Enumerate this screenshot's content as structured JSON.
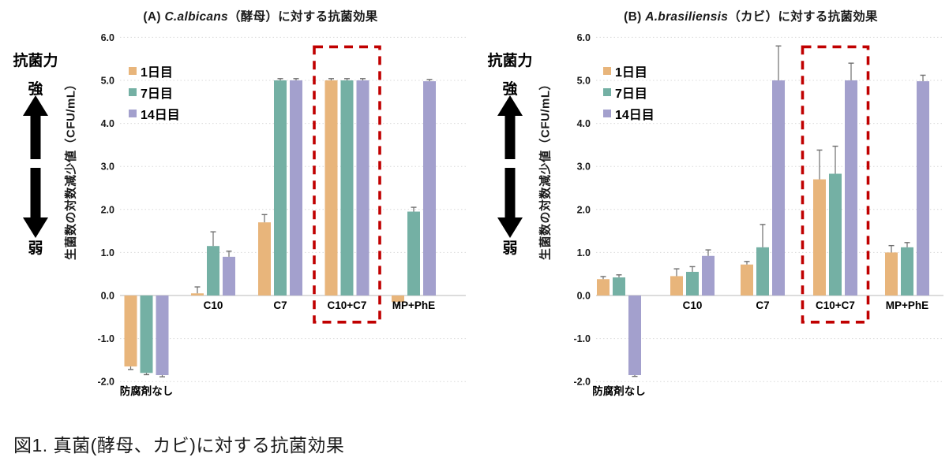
{
  "page": {
    "caption": "図1. 真菌(酵母、カビ)に対する抗菌効果"
  },
  "side_annotation": {
    "title": "抗菌力",
    "strong": "強",
    "weak": "弱"
  },
  "legend": {
    "items": [
      "1日目",
      "7日目",
      "14日目"
    ]
  },
  "colors": {
    "day1": "#E8B57B",
    "day7": "#74B0A4",
    "day14": "#A3A0CD",
    "highlight_box": "#C00000",
    "gridline": "#D9D9D9",
    "axis_line": "#C6C6C6",
    "error_bar": "#6E6E6E"
  },
  "chart_data": [
    {
      "id": "A",
      "type": "bar",
      "title": {
        "prefix": "(A) ",
        "species": "C.albicans",
        "rest": "（酵母）に対する抗菌効果"
      },
      "ylabel": "生菌数の対数減少値（CFU/mL）",
      "ylim": [
        -2.0,
        6.0
      ],
      "grid": true,
      "legend_position": "upper-left-inside",
      "ytick_labels": [
        "6.0",
        "5.0",
        "4.0",
        "3.0",
        "2.0",
        "1.0",
        "0.0",
        "-1.0",
        "-2.0"
      ],
      "categories": [
        "防腐剤なし",
        "C10",
        "C7",
        "C10+C7",
        "MP+PhE"
      ],
      "highlight_category": "C10+C7",
      "series": [
        {
          "name": "1日目",
          "color_key": "day1",
          "values": [
            -1.65,
            0.05,
            1.7,
            5.0,
            -0.15
          ],
          "errors": [
            0.07,
            0.15,
            0.18,
            0.04,
            0.07
          ]
        },
        {
          "name": "7日目",
          "color_key": "day7",
          "values": [
            -1.8,
            1.15,
            5.0,
            5.0,
            1.95
          ],
          "errors": [
            0.04,
            0.33,
            0.04,
            0.04,
            0.1
          ]
        },
        {
          "name": "14日目",
          "color_key": "day14",
          "values": [
            -1.85,
            0.9,
            5.0,
            5.0,
            4.98
          ],
          "errors": [
            0.04,
            0.13,
            0.04,
            0.04,
            0.04
          ]
        }
      ]
    },
    {
      "id": "B",
      "type": "bar",
      "title": {
        "prefix": "(B) ",
        "species": "A.brasiliensis",
        "rest": "（カビ）に対する抗菌効果"
      },
      "ylabel": "生菌数の対数減少値（CFU/mL）",
      "ylim": [
        -2.0,
        6.0
      ],
      "grid": true,
      "legend_position": "upper-left-inside",
      "ytick_labels": [
        "6.0",
        "5.0",
        "4.0",
        "3.0",
        "2.0",
        "1.0",
        "0.0",
        "-1.0",
        "-2.0"
      ],
      "categories": [
        "防腐剤なし",
        "C10",
        "C7",
        "C10+C7",
        "MP+PhE"
      ],
      "highlight_category": "C10+C7",
      "series": [
        {
          "name": "1日目",
          "color_key": "day1",
          "values": [
            0.38,
            0.45,
            0.72,
            2.7,
            1.0
          ],
          "errors": [
            0.06,
            0.17,
            0.07,
            0.68,
            0.16
          ]
        },
        {
          "name": "7日目",
          "color_key": "day7",
          "values": [
            0.42,
            0.55,
            1.12,
            2.83,
            1.12
          ],
          "errors": [
            0.06,
            0.12,
            0.53,
            0.64,
            0.11
          ]
        },
        {
          "name": "14日目",
          "color_key": "day14",
          "values": [
            -1.85,
            0.92,
            5.0,
            5.0,
            4.98
          ],
          "errors": [
            0.03,
            0.14,
            0.8,
            0.4,
            0.14
          ]
        }
      ]
    }
  ]
}
